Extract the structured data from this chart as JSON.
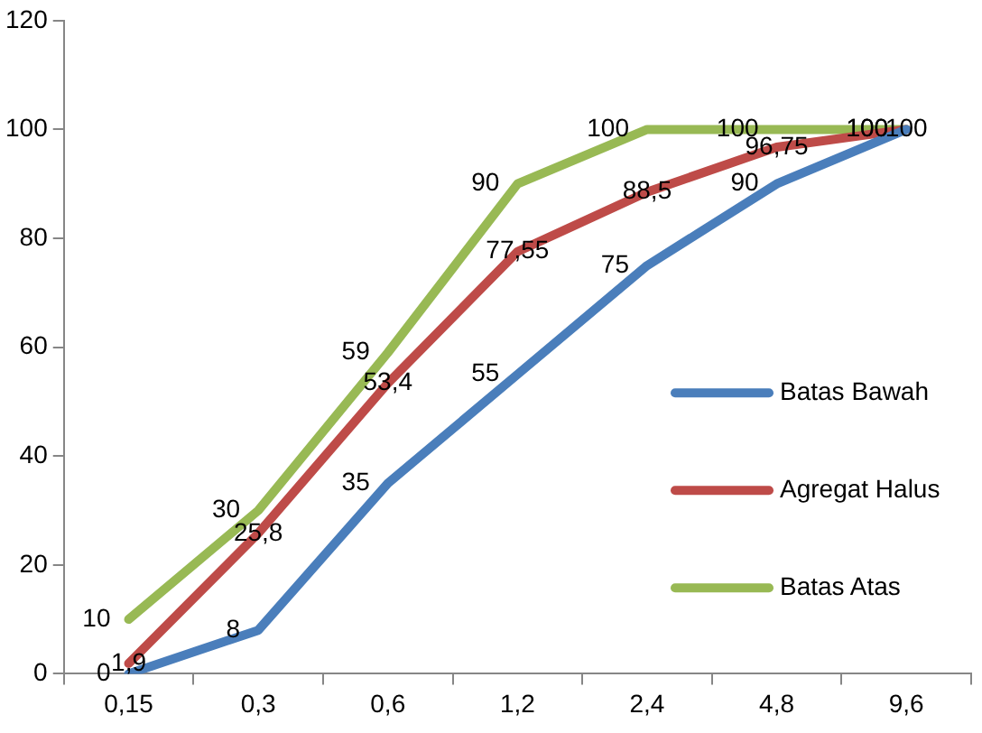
{
  "chart_data": {
    "type": "line",
    "categories": [
      "0,15",
      "0,3",
      "0,6",
      "1,2",
      "2,4",
      "4,8",
      "9,6"
    ],
    "series": [
      {
        "name": "Batas Bawah",
        "color": "#4a7ebb",
        "values": [
          0,
          8,
          35,
          55,
          75,
          90,
          100
        ],
        "value_labels": [
          "0",
          "8",
          "35",
          "55",
          "75",
          "90",
          "100"
        ]
      },
      {
        "name": "Agregat Halus",
        "color": "#be4b48",
        "values": [
          1.9,
          25.8,
          53.4,
          77.55,
          88.5,
          96.75,
          100
        ],
        "value_labels": [
          "1,9",
          "25,8",
          "53,4",
          "77,55",
          "88,5",
          "96,75",
          "100"
        ]
      },
      {
        "name": "Batas Atas",
        "color": "#98b954",
        "values": [
          10,
          30,
          59,
          90,
          100,
          100,
          100
        ],
        "value_labels": [
          "10",
          "30",
          "59",
          "90",
          "100",
          "100",
          "100"
        ]
      }
    ],
    "ylim": [
      0,
      120
    ],
    "yticks": [
      0,
      20,
      40,
      60,
      80,
      100,
      120
    ],
    "grid": false,
    "legend": "right",
    "marker": "none",
    "line_style": "solid"
  }
}
